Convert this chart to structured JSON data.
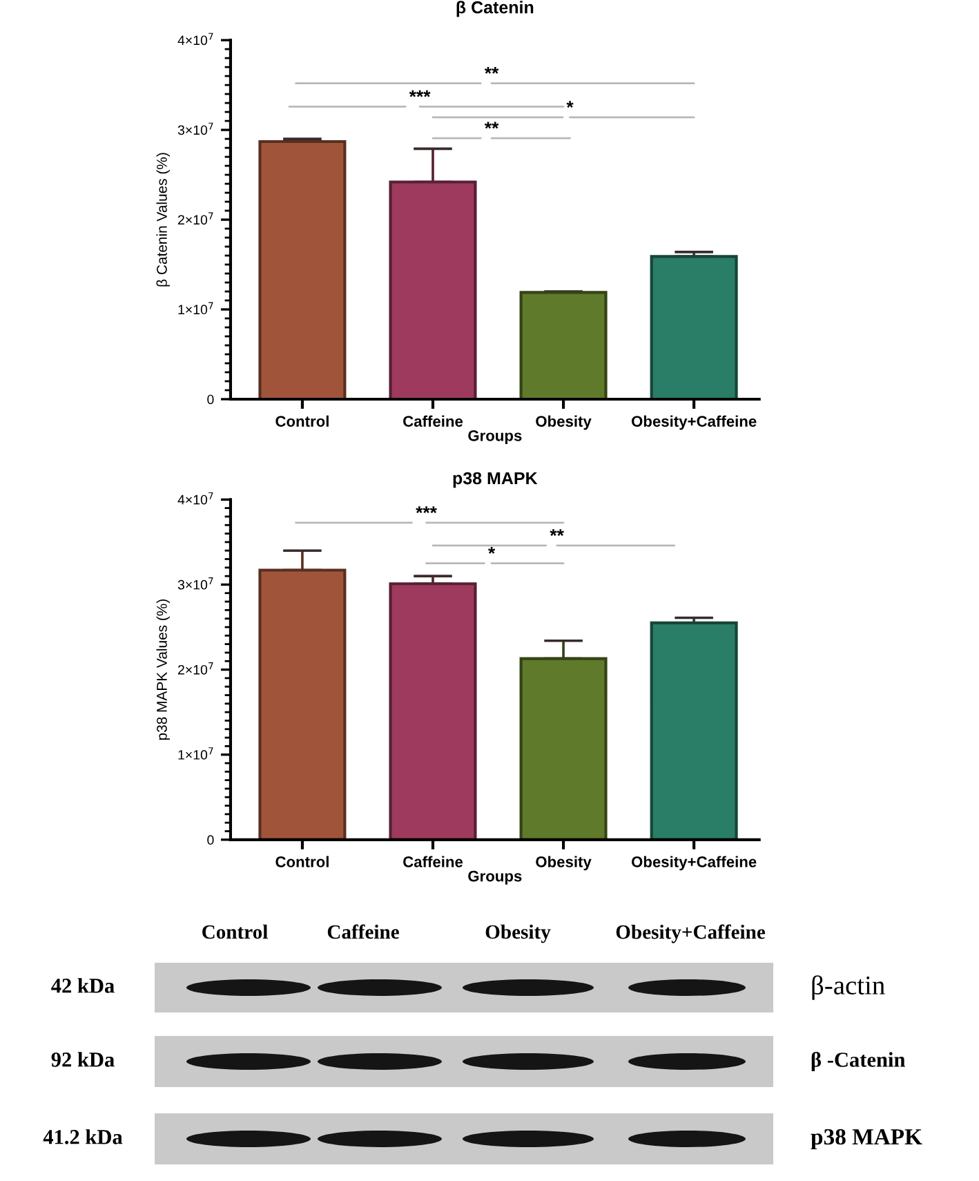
{
  "chart_data": [
    {
      "type": "bar",
      "title": "β Catenin",
      "xlabel": "Groups",
      "ylabel": "β Catenin Values (%)",
      "categories": [
        "Control",
        "Caffeine",
        "Obesity",
        "Obesity+Caffeine"
      ],
      "values": [
        28700000,
        24200000,
        11900000,
        15900000
      ],
      "errors": [
        [
          28700000,
          29000000
        ],
        [
          24200000,
          27900000
        ],
        [
          11900000,
          12000000
        ],
        [
          15900000,
          16400000
        ]
      ],
      "colors": [
        "#a0553a",
        "#9e3a5e",
        "#5f7a2a",
        "#2a7d66"
      ],
      "ylim": [
        0,
        40000000
      ],
      "yticks": [
        0,
        {
          "value": 10000000,
          "label": "1×10$^{7}$"
        },
        {
          "value": 20000000,
          "label": "2×10$^{7}$"
        },
        {
          "value": 30000000,
          "label": "3×10$^{7}$"
        },
        {
          "value": 40000000,
          "label": "4×10$^{7}$"
        }
      ],
      "annotations": [
        "**",
        "***",
        "*",
        "**"
      ]
    },
    {
      "type": "bar",
      "title": "p38 MAPK",
      "xlabel": "Groups",
      "ylabel": "p38 MAPK Values (%)",
      "categories": [
        "Control",
        "Caffeine",
        "Obesity",
        "Obesity+Caffeine"
      ],
      "values": [
        31700000,
        30100000,
        21300000,
        25500000
      ],
      "errors": [
        [
          31700000,
          34000000
        ],
        [
          30100000,
          31000000
        ],
        [
          21300000,
          23400000
        ],
        [
          25500000,
          26100000
        ]
      ],
      "colors": [
        "#a0553a",
        "#9e3a5e",
        "#5f7a2a",
        "#2a7d66"
      ],
      "ylim": [
        0,
        40000000
      ],
      "yticks": [
        0,
        {
          "value": 10000000,
          "label": "1×10$^{7}$"
        },
        {
          "value": 20000000,
          "label": "2×10$^{7}$"
        },
        {
          "value": 30000000,
          "label": "3×10$^{7}$"
        },
        {
          "value": 40000000,
          "label": "4×10$^{7}$"
        }
      ],
      "annotations": [
        "***",
        "**",
        "*"
      ]
    },
    {
      "type": "other",
      "annotations": [
        "Control",
        "Caffeine",
        "Obesity",
        "Obesity+Caffeine",
        "42 kDa",
        "92 kDa",
        "41.2 kDa",
        "β-actin",
        "β -Catenin",
        "p38 MAPK"
      ]
    }
  ]
}
